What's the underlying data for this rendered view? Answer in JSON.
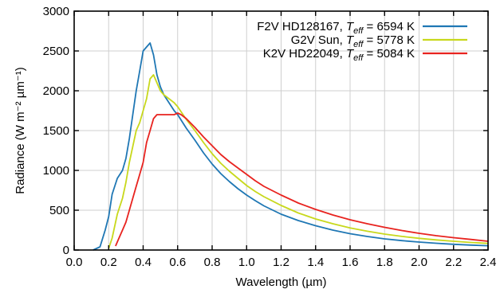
{
  "chart_data": {
    "type": "line",
    "title": "",
    "xlabel": "Wavelength (µm)",
    "ylabel": "Radiance (W m⁻² µm⁻¹)",
    "xlim": [
      0.0,
      2.4
    ],
    "ylim": [
      0,
      3000
    ],
    "x_ticks": [
      0.0,
      0.2,
      0.4,
      0.6,
      0.8,
      1.0,
      1.2,
      1.4,
      1.6,
      1.8,
      2.0,
      2.2,
      2.4
    ],
    "x_tick_labels": [
      "0.0",
      "0.2",
      "0.4",
      "0.6",
      "0.8",
      "1.0",
      "1.2",
      "1.4",
      "1.6",
      "1.8",
      "2.0",
      "2.2",
      "2.4"
    ],
    "y_ticks": [
      0,
      500,
      1000,
      1500,
      2000,
      2500,
      3000
    ],
    "y_tick_labels": [
      "0",
      "500",
      "1000",
      "1500",
      "2000",
      "2500",
      "3000"
    ],
    "grid": true,
    "legend_position": "top-right",
    "series": [
      {
        "name": "F2V HD128167, T_eff = 6594 K",
        "legend_parts": {
          "star": "F2V HD128167, ",
          "T": "T",
          "sub": "eff",
          "rest": " = 6594 K"
        },
        "color": "#1f77b4",
        "x": [
          0.11,
          0.15,
          0.18,
          0.2,
          0.22,
          0.25,
          0.28,
          0.3,
          0.32,
          0.34,
          0.36,
          0.38,
          0.4,
          0.42,
          0.44,
          0.46,
          0.48,
          0.5,
          0.52,
          0.55,
          0.58,
          0.6,
          0.65,
          0.7,
          0.75,
          0.8,
          0.85,
          0.9,
          0.95,
          1.0,
          1.05,
          1.1,
          1.2,
          1.3,
          1.4,
          1.5,
          1.6,
          1.7,
          1.8,
          1.9,
          2.0,
          2.1,
          2.2,
          2.3,
          2.4
        ],
        "y": [
          0,
          40,
          250,
          420,
          700,
          900,
          1000,
          1150,
          1400,
          1700,
          2000,
          2250,
          2500,
          2550,
          2600,
          2450,
          2200,
          2050,
          1950,
          1850,
          1750,
          1700,
          1530,
          1380,
          1220,
          1080,
          960,
          860,
          770,
          690,
          620,
          555,
          450,
          370,
          305,
          250,
          205,
          170,
          140,
          118,
          100,
          85,
          72,
          62,
          54
        ]
      },
      {
        "name": "G2V Sun, T_eff = 5778 K",
        "legend_parts": {
          "star": "G2V Sun, ",
          "T": "T",
          "sub": "eff",
          "rest": " = 5778 K"
        },
        "color": "#c8d81c",
        "x": [
          0.2,
          0.22,
          0.25,
          0.28,
          0.3,
          0.32,
          0.34,
          0.36,
          0.38,
          0.4,
          0.42,
          0.44,
          0.46,
          0.48,
          0.5,
          0.52,
          0.55,
          0.58,
          0.6,
          0.65,
          0.7,
          0.75,
          0.8,
          0.85,
          0.9,
          0.95,
          1.0,
          1.05,
          1.1,
          1.2,
          1.3,
          1.4,
          1.5,
          1.6,
          1.7,
          1.8,
          1.9,
          2.0,
          2.1,
          2.2,
          2.3,
          2.4
        ],
        "y": [
          20,
          150,
          450,
          650,
          850,
          1100,
          1300,
          1500,
          1600,
          1750,
          1900,
          2150,
          2200,
          2100,
          2000,
          1950,
          1900,
          1850,
          1800,
          1640,
          1500,
          1350,
          1210,
          1090,
          990,
          900,
          810,
          735,
          670,
          560,
          465,
          390,
          330,
          278,
          236,
          200,
          171,
          147,
          127,
          110,
          95,
          83
        ]
      },
      {
        "name": "K2V HD22049, T_eff = 5084 K",
        "legend_parts": {
          "star": "K2V HD22049, ",
          "T": "T",
          "sub": "eff",
          "rest": " = 5084 K"
        },
        "color": "#e8231f",
        "x": [
          0.24,
          0.26,
          0.28,
          0.3,
          0.32,
          0.34,
          0.36,
          0.38,
          0.4,
          0.42,
          0.44,
          0.46,
          0.48,
          0.5,
          0.52,
          0.55,
          0.58,
          0.6,
          0.62,
          0.65,
          0.7,
          0.75,
          0.8,
          0.85,
          0.9,
          0.95,
          1.0,
          1.05,
          1.1,
          1.2,
          1.3,
          1.4,
          1.5,
          1.6,
          1.7,
          1.8,
          1.9,
          2.0,
          2.1,
          2.2,
          2.3,
          2.4
        ],
        "y": [
          50,
          150,
          250,
          350,
          500,
          650,
          800,
          950,
          1100,
          1350,
          1500,
          1650,
          1700,
          1700,
          1700,
          1700,
          1700,
          1720,
          1700,
          1650,
          1540,
          1420,
          1310,
          1200,
          1110,
          1030,
          950,
          870,
          800,
          690,
          590,
          510,
          440,
          380,
          330,
          285,
          245,
          210,
          180,
          155,
          133,
          110
        ]
      }
    ]
  }
}
